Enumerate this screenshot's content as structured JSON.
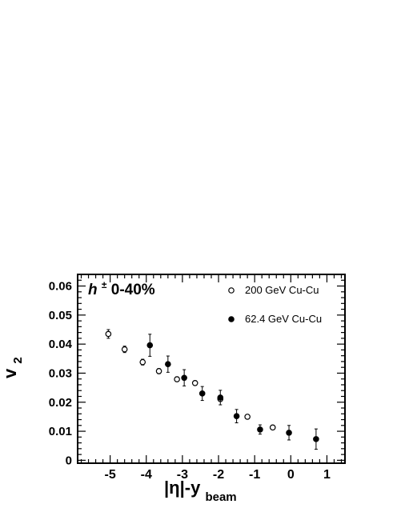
{
  "chart_data": {
    "type": "scatter",
    "annotation": {
      "prefix": "h",
      "superscript": "±",
      "text": " 0-40%"
    },
    "ylabel": {
      "main": "v",
      "sub": "2"
    },
    "xlabel": {
      "main": "|η|-y",
      "sub": "beam"
    },
    "xlim": [
      -5.9,
      1.5
    ],
    "ylim": [
      -0.001,
      0.064
    ],
    "xticks": [
      -5,
      -4,
      -3,
      -2,
      -1,
      0,
      1
    ],
    "xtick_labels": [
      "-5",
      "-4",
      "-3",
      "-2",
      "-1",
      "0",
      "1"
    ],
    "yticks": [
      0,
      0.01,
      0.02,
      0.03,
      0.04,
      0.05,
      0.06
    ],
    "ytick_labels": [
      "0",
      "0.01",
      "0.02",
      "0.03",
      "0.04",
      "0.05",
      "0.06"
    ],
    "grid": false,
    "legend": {
      "placement": "top-right"
    },
    "series": [
      {
        "name": "200 GeV Cu-Cu",
        "marker": "open-circle",
        "color": "#000000",
        "points": [
          {
            "x": -5.05,
            "y": 0.0435,
            "err": 0.0015
          },
          {
            "x": -4.6,
            "y": 0.0382,
            "err": 0.0011
          },
          {
            "x": -4.1,
            "y": 0.0338,
            "err": 0.001
          },
          {
            "x": -3.65,
            "y": 0.0307,
            "err": 0.0009
          },
          {
            "x": -3.15,
            "y": 0.0279,
            "err": 0.0008
          },
          {
            "x": -2.65,
            "y": 0.0266,
            "err": 0.0008
          },
          {
            "x": -1.95,
            "y": 0.0211,
            "err": 0.0007
          },
          {
            "x": -1.2,
            "y": 0.015,
            "err": 0
          },
          {
            "x": -0.5,
            "y": 0.0113,
            "err": 0
          }
        ]
      },
      {
        "name": "62.4 GeV Cu-Cu",
        "marker": "filled-circle",
        "color": "#000000",
        "points": [
          {
            "x": -3.9,
            "y": 0.0396,
            "err": 0.0038
          },
          {
            "x": -3.4,
            "y": 0.0331,
            "err": 0.0028
          },
          {
            "x": -2.95,
            "y": 0.0284,
            "err": 0.0028
          },
          {
            "x": -2.45,
            "y": 0.023,
            "err": 0.0024
          },
          {
            "x": -1.95,
            "y": 0.0216,
            "err": 0.0025
          },
          {
            "x": -1.5,
            "y": 0.0152,
            "err": 0.0023
          },
          {
            "x": -0.85,
            "y": 0.0106,
            "err": 0.0016
          },
          {
            "x": -0.05,
            "y": 0.0095,
            "err": 0.0025
          },
          {
            "x": 0.7,
            "y": 0.0073,
            "err": 0.0035
          }
        ]
      }
    ]
  }
}
